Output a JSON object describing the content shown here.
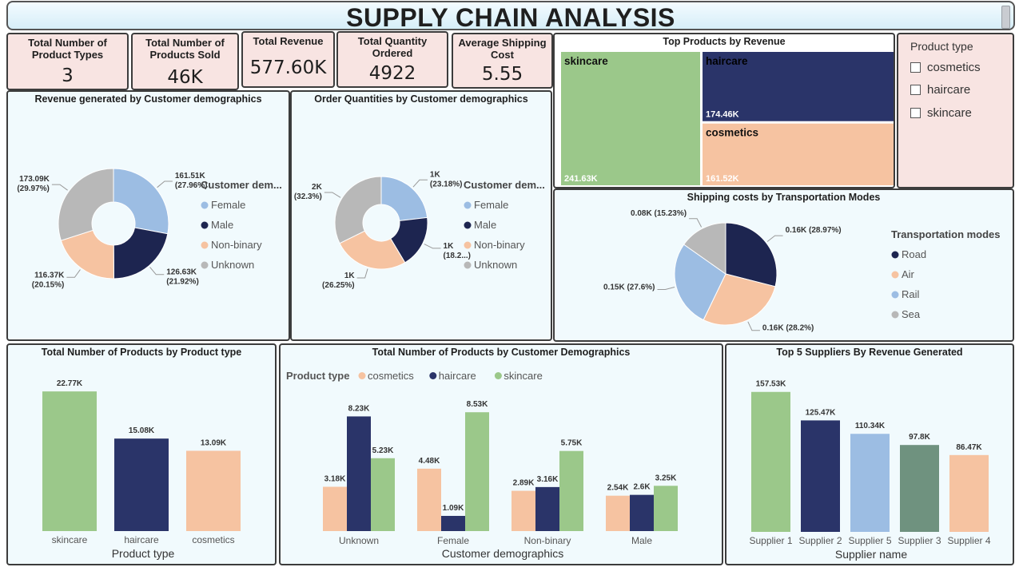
{
  "title": "SUPPLY CHAIN ANALYSIS",
  "kpis": [
    {
      "label": "Total Number of Product Types",
      "value": "3"
    },
    {
      "label": "Total Number of Products Sold",
      "value": "46K"
    },
    {
      "label": "Total Revenue",
      "value": "577.60K"
    },
    {
      "label": "Total Quantity Ordered",
      "value": "4922"
    },
    {
      "label": "Average Shipping Cost",
      "value": "5.55"
    }
  ],
  "slicer": {
    "title": "Product type",
    "items": [
      "cosmetics",
      "haircare",
      "skincare"
    ]
  },
  "colors": {
    "green": "#9bc88a",
    "navy": "#2a3469",
    "peach": "#f6c3a1",
    "lightblue": "#9cbde3",
    "gray": "#b8b8b8",
    "darknavy": "#1d2550",
    "sage": "#6f927f"
  },
  "chart_data": [
    {
      "id": "revenue_demographics",
      "type": "pie",
      "title": "Revenue generated by Customer demographics",
      "legend_title": "Customer dem...",
      "legend_position": "right",
      "slices": [
        {
          "name": "Female",
          "value": 161.51,
          "label": "161.51K",
          "pct": "(27.96%)",
          "color": "#9cbde3"
        },
        {
          "name": "Male",
          "value": 126.63,
          "label": "126.63K",
          "pct": "(21.92%)",
          "color": "#1d2550"
        },
        {
          "name": "Non-binary",
          "value": 116.37,
          "label": "116.37K",
          "pct": "(20.15%)",
          "color": "#f6c3a1"
        },
        {
          "name": "Unknown",
          "value": 173.09,
          "label": "173.09K",
          "pct": "(29.97%)",
          "color": "#b8b8b8"
        }
      ]
    },
    {
      "id": "order_demographics",
      "type": "pie",
      "title": "Order Quantities by Customer demographics",
      "legend_title": "Customer dem...",
      "legend_position": "right",
      "slices": [
        {
          "name": "Female",
          "value": 23.18,
          "label": "1K",
          "pct": "(23.18%)",
          "color": "#9cbde3"
        },
        {
          "name": "Male",
          "value": 18.25,
          "label": "1K",
          "pct": "(18.2...)",
          "color": "#1d2550"
        },
        {
          "name": "Non-binary",
          "value": 26.25,
          "label": "1K",
          "pct": "(26.25%)",
          "color": "#f6c3a1"
        },
        {
          "name": "Unknown",
          "value": 32.3,
          "label": "2K",
          "pct": "(32.3%)",
          "color": "#b8b8b8"
        }
      ]
    },
    {
      "id": "top_products_revenue",
      "type": "treemap",
      "title": "Top Products by Revenue",
      "items": [
        {
          "name": "skincare",
          "value": 241.63,
          "label": "241.63K",
          "color": "#9bc88a"
        },
        {
          "name": "haircare",
          "value": 174.46,
          "label": "174.46K",
          "color": "#2a3469"
        },
        {
          "name": "cosmetics",
          "value": 161.52,
          "label": "161.52K",
          "color": "#f6c3a1"
        }
      ]
    },
    {
      "id": "shipping_costs",
      "type": "pie",
      "title": "Shipping costs by Transportation Modes",
      "legend_title": "Transportation modes",
      "legend_position": "right",
      "slices": [
        {
          "name": "Road",
          "value": 28.97,
          "label": "0.16K",
          "pct": "(28.97%)",
          "color": "#1d2550"
        },
        {
          "name": "Air",
          "value": 28.2,
          "label": "0.16K",
          "pct": "(28.2%)",
          "color": "#f6c3a1"
        },
        {
          "name": "Rail",
          "value": 27.6,
          "label": "0.15K",
          "pct": "(27.6%)",
          "color": "#9cbde3"
        },
        {
          "name": "Sea",
          "value": 15.23,
          "label": "0.08K",
          "pct": "(15.23%)",
          "color": "#b8b8b8"
        }
      ]
    },
    {
      "id": "products_by_type",
      "type": "bar",
      "title": "Total Number of Products by Product type",
      "xlabel": "Product type",
      "categories": [
        "skincare",
        "haircare",
        "cosmetics"
      ],
      "values": [
        22.77,
        15.08,
        13.09
      ],
      "labels": [
        "22.77K",
        "15.08K",
        "13.09K"
      ],
      "colors": [
        "#9bc88a",
        "#2a3469",
        "#f6c3a1"
      ],
      "ylim": [
        0,
        25
      ]
    },
    {
      "id": "products_by_demographics",
      "type": "bar",
      "title": "Total Number of Products by Customer Demographics",
      "xlabel": "Customer demographics",
      "legend_title": "Product type",
      "legend_position": "top-left",
      "categories": [
        "Unknown",
        "Female",
        "Non-binary",
        "Male"
      ],
      "series": [
        {
          "name": "cosmetics",
          "color": "#f6c3a1",
          "values": [
            3.18,
            4.48,
            2.89,
            2.54
          ],
          "labels": [
            "3.18K",
            "4.48K",
            "2.89K",
            "2.54K"
          ]
        },
        {
          "name": "haircare",
          "color": "#2a3469",
          "values": [
            8.23,
            1.09,
            3.16,
            2.6
          ],
          "labels": [
            "8.23K",
            "1.09K",
            "3.16K",
            "2.6K"
          ]
        },
        {
          "name": "skincare",
          "color": "#9bc88a",
          "values": [
            5.23,
            8.53,
            5.75,
            3.25
          ],
          "labels": [
            "5.23K",
            "8.53K",
            "5.75K",
            "3.25K"
          ]
        }
      ],
      "ylim": [
        0,
        9
      ]
    },
    {
      "id": "top_suppliers",
      "type": "bar",
      "title": "Top 5 Suppliers By Revenue Generated",
      "xlabel": "Supplier name",
      "categories": [
        "Supplier 1",
        "Supplier 2",
        "Supplier 5",
        "Supplier 3",
        "Supplier 4"
      ],
      "values": [
        157.53,
        125.47,
        110.34,
        97.8,
        86.47
      ],
      "labels": [
        "157.53K",
        "125.47K",
        "110.34K",
        "97.8K",
        "86.47K"
      ],
      "colors": [
        "#9bc88a",
        "#2a3469",
        "#9cbde3",
        "#6f927f",
        "#f6c3a1"
      ],
      "ylim": [
        0,
        160
      ]
    }
  ]
}
